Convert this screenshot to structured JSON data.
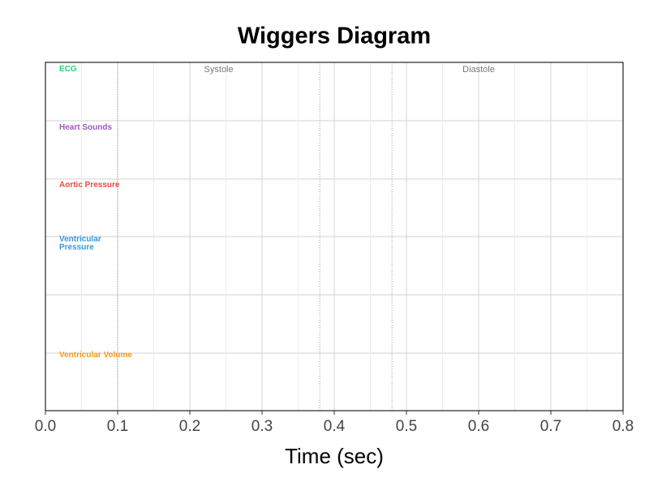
{
  "chart_data": {
    "type": "line",
    "title": "Wiggers Diagram",
    "x_label": "Time (sec)",
    "xlim": [
      0,
      0.8
    ],
    "xticks": [
      {
        "value": 0,
        "label": "0.0"
      },
      0.1,
      0.2,
      0.3,
      0.4,
      0.5,
      0.6,
      0.7,
      0.8
    ],
    "grid": true,
    "phase_lines": [
      0.1,
      0.38,
      0.48
    ],
    "annotations": [
      {
        "text": "Systole",
        "x": 0.24
      },
      {
        "text": "Diastole",
        "x": 0.6
      }
    ],
    "series": [
      {
        "name": "ECG",
        "color": "#2ecc71"
      },
      {
        "name": "Heart Sounds",
        "color": "#9b59b6"
      },
      {
        "name": "Aortic Pressure",
        "color": "#e74c3c"
      },
      {
        "name": "Ventricular Pressure",
        "color": "#3498db"
      },
      {
        "name": "Ventricular Volume",
        "color": "#f39c12"
      }
    ]
  }
}
